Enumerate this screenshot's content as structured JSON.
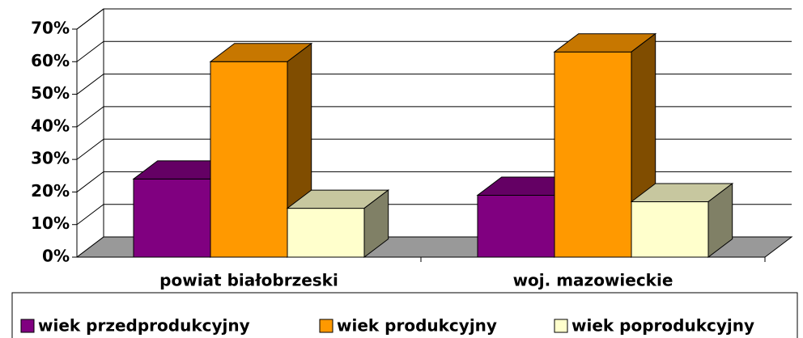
{
  "chart_data": {
    "type": "bar3d",
    "categories": [
      "powiat białobrzeski",
      "woj. mazowieckie"
    ],
    "series": [
      {
        "name": "wiek przedprodukcyjny",
        "color": "#800080",
        "values": [
          24,
          19
        ]
      },
      {
        "name": "wiek produkcyjny",
        "color": "#ff9900",
        "values": [
          60,
          63
        ]
      },
      {
        "name": "wiek poprodukcyjny",
        "color": "#ffffcc",
        "values": [
          15,
          17
        ]
      }
    ],
    "ylim": [
      0,
      70
    ],
    "yticks": [
      {
        "value": 0,
        "label": "0%"
      },
      {
        "value": 10,
        "label": "10%"
      },
      {
        "value": 20,
        "label": "20%"
      },
      {
        "value": 30,
        "label": "30%"
      },
      {
        "value": 40,
        "label": "40%"
      },
      {
        "value": 50,
        "label": "50%"
      },
      {
        "value": 60,
        "label": "60%"
      },
      {
        "value": 70,
        "label": "70%"
      }
    ],
    "grid": true,
    "legend": "bottom"
  }
}
